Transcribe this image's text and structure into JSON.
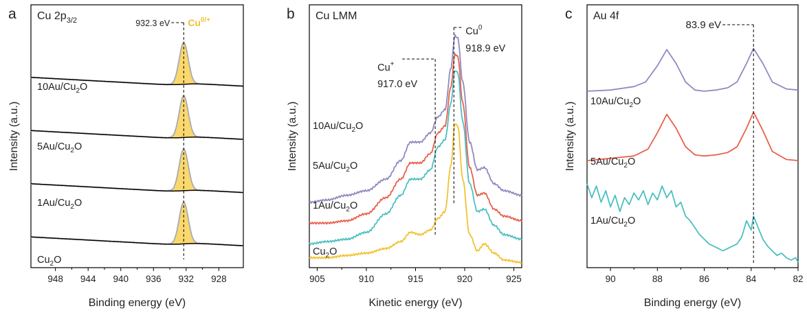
{
  "chart_data": [
    {
      "panel_label": "a",
      "type": "line",
      "title": "Cu 2p",
      "title_sub": "3/2",
      "xlabel": "Binding energy (eV)",
      "ylabel": "Intensity (a.u.)",
      "xlim": [
        951,
        925
      ],
      "x_reversed": true,
      "xticks": [
        948,
        944,
        940,
        936,
        932,
        928
      ],
      "yticks": false,
      "grid": false,
      "legend": "none",
      "peak_annotation": {
        "text": "932.3 eV",
        "x": 932.3
      },
      "species_label": {
        "main": "Cu",
        "sup": "0/+",
        "color": "#f2c230"
      },
      "fill_color": "#fad86d",
      "raw_line_color": "#c8c8c8",
      "fit_line_color": "#aaaaaa",
      "background_line_color": "#000000",
      "peak": {
        "center": 932.3,
        "width": 0.55
      },
      "series": [
        {
          "label_main": "10Au/Cu",
          "label_sub": "2",
          "label_tail": "O",
          "background_left": 0.05,
          "background_right": 0.02,
          "peak_height": 0.88
        },
        {
          "label_main": "5Au/Cu",
          "label_sub": "2",
          "label_tail": "O",
          "background_left": 0.05,
          "background_right": 0.02,
          "peak_height": 0.88
        },
        {
          "label_main": "1Au/Cu",
          "label_sub": "2",
          "label_tail": "O",
          "background_left": 0.05,
          "background_right": 0.02,
          "peak_height": 0.88
        },
        {
          "label_main": "Cu",
          "label_sub": "2",
          "label_tail": "O",
          "background_left": 0.05,
          "background_right": 0.02,
          "peak_height": 0.88
        }
      ]
    },
    {
      "panel_label": "b",
      "type": "line",
      "title": "Cu LMM",
      "xlabel": "Kinetic energy (eV)",
      "ylabel": "Intensity (a.u.)",
      "xlim": [
        904.2,
        925.8
      ],
      "x_reversed": false,
      "xticks": [
        905,
        910,
        915,
        920,
        925
      ],
      "yticks": false,
      "grid": false,
      "legend": "none",
      "annotations": [
        {
          "main": "Cu",
          "sup": "+",
          "value": "917.0 eV",
          "x": 917.0
        },
        {
          "main": "Cu",
          "sup": "0",
          "value": "918.9 eV",
          "x": 918.9
        }
      ],
      "series": [
        {
          "label_main": "10Au/Cu",
          "label_sub": "2",
          "label_tail": "O",
          "color": "#9088c0",
          "points": [
            [
              904.2,
              0.26
            ],
            [
              906,
              0.27
            ],
            [
              908,
              0.29
            ],
            [
              910,
              0.31
            ],
            [
              912,
              0.36
            ],
            [
              913.5,
              0.44
            ],
            [
              914.5,
              0.52
            ],
            [
              915.5,
              0.52
            ],
            [
              916.5,
              0.56
            ],
            [
              917.3,
              0.63
            ],
            [
              918.0,
              0.66
            ],
            [
              918.6,
              0.84
            ],
            [
              919.0,
              0.98
            ],
            [
              919.3,
              0.97
            ],
            [
              919.8,
              0.78
            ],
            [
              920.5,
              0.52
            ],
            [
              921.3,
              0.4
            ],
            [
              922.0,
              0.41
            ],
            [
              923.0,
              0.34
            ],
            [
              924.0,
              0.31
            ],
            [
              925.8,
              0.29
            ]
          ]
        },
        {
          "label_main": "5Au/Cu",
          "label_sub": "2",
          "label_tail": "O",
          "color": "#e8604c",
          "points": [
            [
              904.2,
              0.17
            ],
            [
              906,
              0.17
            ],
            [
              908,
              0.18
            ],
            [
              910,
              0.21
            ],
            [
              912,
              0.28
            ],
            [
              913.5,
              0.36
            ],
            [
              914.5,
              0.43
            ],
            [
              915.5,
              0.43
            ],
            [
              916.5,
              0.47
            ],
            [
              917.3,
              0.56
            ],
            [
              918.0,
              0.59
            ],
            [
              918.6,
              0.76
            ],
            [
              919.0,
              0.9
            ],
            [
              919.3,
              0.89
            ],
            [
              919.8,
              0.69
            ],
            [
              920.5,
              0.41
            ],
            [
              921.3,
              0.29
            ],
            [
              922.0,
              0.3
            ],
            [
              923.0,
              0.23
            ],
            [
              924.0,
              0.2
            ],
            [
              925.8,
              0.18
            ]
          ]
        },
        {
          "label_main": "1Au/Cu",
          "label_sub": "2",
          "label_tail": "O",
          "color": "#4bbfbf",
          "points": [
            [
              904.2,
              0.08
            ],
            [
              906,
              0.09
            ],
            [
              908,
              0.1
            ],
            [
              910,
              0.13
            ],
            [
              912,
              0.21
            ],
            [
              913.5,
              0.29
            ],
            [
              914.5,
              0.36
            ],
            [
              915.5,
              0.36
            ],
            [
              916.5,
              0.4
            ],
            [
              917.3,
              0.5
            ],
            [
              918.0,
              0.53
            ],
            [
              918.6,
              0.69
            ],
            [
              919.0,
              0.83
            ],
            [
              919.3,
              0.82
            ],
            [
              919.8,
              0.61
            ],
            [
              920.5,
              0.34
            ],
            [
              921.3,
              0.22
            ],
            [
              922.0,
              0.23
            ],
            [
              923.0,
              0.16
            ],
            [
              924.0,
              0.12
            ],
            [
              925.8,
              0.1
            ]
          ]
        },
        {
          "label_main": "Cu",
          "label_sub": "2",
          "label_tail": "O",
          "color": "#f2c230",
          "points": [
            [
              904.2,
              0.02
            ],
            [
              906,
              0.02
            ],
            [
              908,
              0.03
            ],
            [
              910,
              0.04
            ],
            [
              912,
              0.06
            ],
            [
              913.5,
              0.09
            ],
            [
              914.5,
              0.13
            ],
            [
              915.5,
              0.12
            ],
            [
              916.5,
              0.14
            ],
            [
              917.3,
              0.19
            ],
            [
              918.0,
              0.22
            ],
            [
              918.6,
              0.42
            ],
            [
              919.0,
              0.6
            ],
            [
              919.3,
              0.59
            ],
            [
              919.8,
              0.36
            ],
            [
              920.5,
              0.12
            ],
            [
              921.3,
              0.05
            ],
            [
              922.0,
              0.08
            ],
            [
              923.0,
              0.04
            ],
            [
              924.0,
              0.01
            ],
            [
              925.8,
              0.0
            ]
          ]
        }
      ]
    },
    {
      "panel_label": "c",
      "type": "line",
      "title": "Au 4f",
      "xlabel": "Binding energy (eV)",
      "ylabel": "Intensity (a.u.)",
      "xlim": [
        91,
        82
      ],
      "x_reversed": true,
      "xticks": [
        90,
        88,
        86,
        84,
        82
      ],
      "yticks": false,
      "grid": false,
      "legend": "none",
      "peak_annotation": {
        "text": "83.9 eV",
        "x": 83.9
      },
      "series": [
        {
          "label_main": "10Au/Cu",
          "label_sub": "2",
          "label_tail": "O",
          "color": "#9088c0",
          "points": [
            [
              91,
              0.74
            ],
            [
              90,
              0.745
            ],
            [
              89,
              0.76
            ],
            [
              88.5,
              0.78
            ],
            [
              88,
              0.85
            ],
            [
              87.6,
              0.92
            ],
            [
              87.2,
              0.86
            ],
            [
              86.8,
              0.78
            ],
            [
              86.4,
              0.745
            ],
            [
              86,
              0.74
            ],
            [
              85.5,
              0.745
            ],
            [
              85,
              0.755
            ],
            [
              84.6,
              0.78
            ],
            [
              84.2,
              0.86
            ],
            [
              83.9,
              0.925
            ],
            [
              83.5,
              0.86
            ],
            [
              83.1,
              0.78
            ],
            [
              82.5,
              0.75
            ],
            [
              82,
              0.745
            ]
          ]
        },
        {
          "label_main": "5Au/Cu",
          "label_sub": "2",
          "label_tail": "O",
          "color": "#e8604c",
          "points": [
            [
              91,
              0.44
            ],
            [
              90,
              0.45
            ],
            [
              89,
              0.46
            ],
            [
              88.4,
              0.49
            ],
            [
              88,
              0.56
            ],
            [
              87.6,
              0.64
            ],
            [
              87.2,
              0.58
            ],
            [
              86.8,
              0.5
            ],
            [
              86.4,
              0.465
            ],
            [
              86,
              0.46
            ],
            [
              85.5,
              0.465
            ],
            [
              85,
              0.475
            ],
            [
              84.6,
              0.5
            ],
            [
              84.2,
              0.58
            ],
            [
              83.9,
              0.65
            ],
            [
              83.5,
              0.57
            ],
            [
              83.1,
              0.48
            ],
            [
              82.5,
              0.445
            ],
            [
              82,
              0.44
            ]
          ]
        },
        {
          "label_main": "1Au/Cu",
          "label_sub": "2",
          "label_tail": "O",
          "color": "#4bbfbf",
          "points": [
            [
              91,
              0.34
            ],
            [
              90.8,
              0.28
            ],
            [
              90.6,
              0.33
            ],
            [
              90.4,
              0.26
            ],
            [
              90.2,
              0.31
            ],
            [
              90,
              0.24
            ],
            [
              89.8,
              0.29
            ],
            [
              89.6,
              0.22
            ],
            [
              89.4,
              0.28
            ],
            [
              89.2,
              0.25
            ],
            [
              89,
              0.3
            ],
            [
              88.8,
              0.27
            ],
            [
              88.6,
              0.31
            ],
            [
              88.4,
              0.25
            ],
            [
              88.2,
              0.3
            ],
            [
              88,
              0.27
            ],
            [
              87.8,
              0.33
            ],
            [
              87.6,
              0.28
            ],
            [
              87.4,
              0.31
            ],
            [
              87.2,
              0.24
            ],
            [
              87,
              0.26
            ],
            [
              86.8,
              0.2
            ],
            [
              86.6,
              0.18
            ],
            [
              86.4,
              0.15
            ],
            [
              86.2,
              0.12
            ],
            [
              86,
              0.1
            ],
            [
              85.8,
              0.08
            ],
            [
              85.6,
              0.07
            ],
            [
              85.4,
              0.06
            ],
            [
              85.2,
              0.05
            ],
            [
              85,
              0.06
            ],
            [
              84.8,
              0.07
            ],
            [
              84.6,
              0.08
            ],
            [
              84.4,
              0.11
            ],
            [
              84.2,
              0.18
            ],
            [
              84,
              0.14
            ],
            [
              83.9,
              0.2
            ],
            [
              83.7,
              0.15
            ],
            [
              83.5,
              0.1
            ],
            [
              83.3,
              0.07
            ],
            [
              83.1,
              0.05
            ],
            [
              82.9,
              0.03
            ],
            [
              82.7,
              0.04
            ],
            [
              82.5,
              0.02
            ],
            [
              82.3,
              0.01
            ],
            [
              82.1,
              0.02
            ],
            [
              82,
              0.0
            ]
          ]
        }
      ]
    }
  ]
}
